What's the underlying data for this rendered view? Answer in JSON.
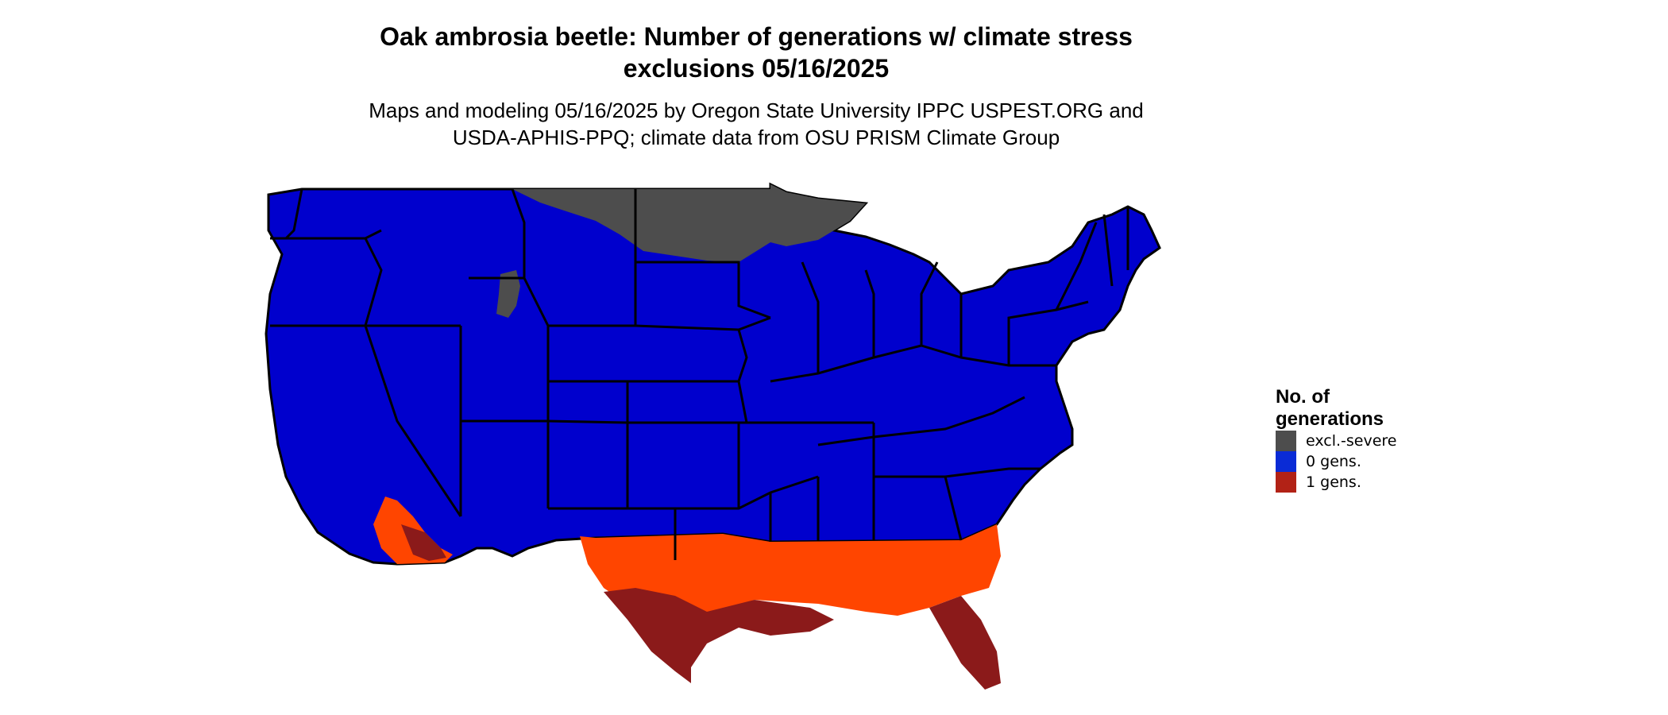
{
  "title_line1": "Oak ambrosia beetle: Number of generations w/ climate stress",
  "title_line2": "exclusions 05/16/2025",
  "subtitle_line1": "Maps and modeling 05/16/2025 by Oregon State University IPPC USPEST.ORG and",
  "subtitle_line2": "USDA-APHIS-PPQ; climate data from OSU PRISM Climate Group",
  "legend": {
    "title_line1": "No. of",
    "title_line2": "generations",
    "items": [
      {
        "label": "excl.-severe",
        "color": "#4d4d4d"
      },
      {
        "label": "0 gens.",
        "color": "#0a2bd6"
      },
      {
        "label": "1 gens.",
        "color": "#b22216"
      }
    ]
  },
  "colors": {
    "zero_gen": "#0000cd",
    "one_gen_light": "#ff4500",
    "one_gen_dark": "#8b1a1a",
    "excluded": "#4d4d4d",
    "borders": "#000000"
  }
}
